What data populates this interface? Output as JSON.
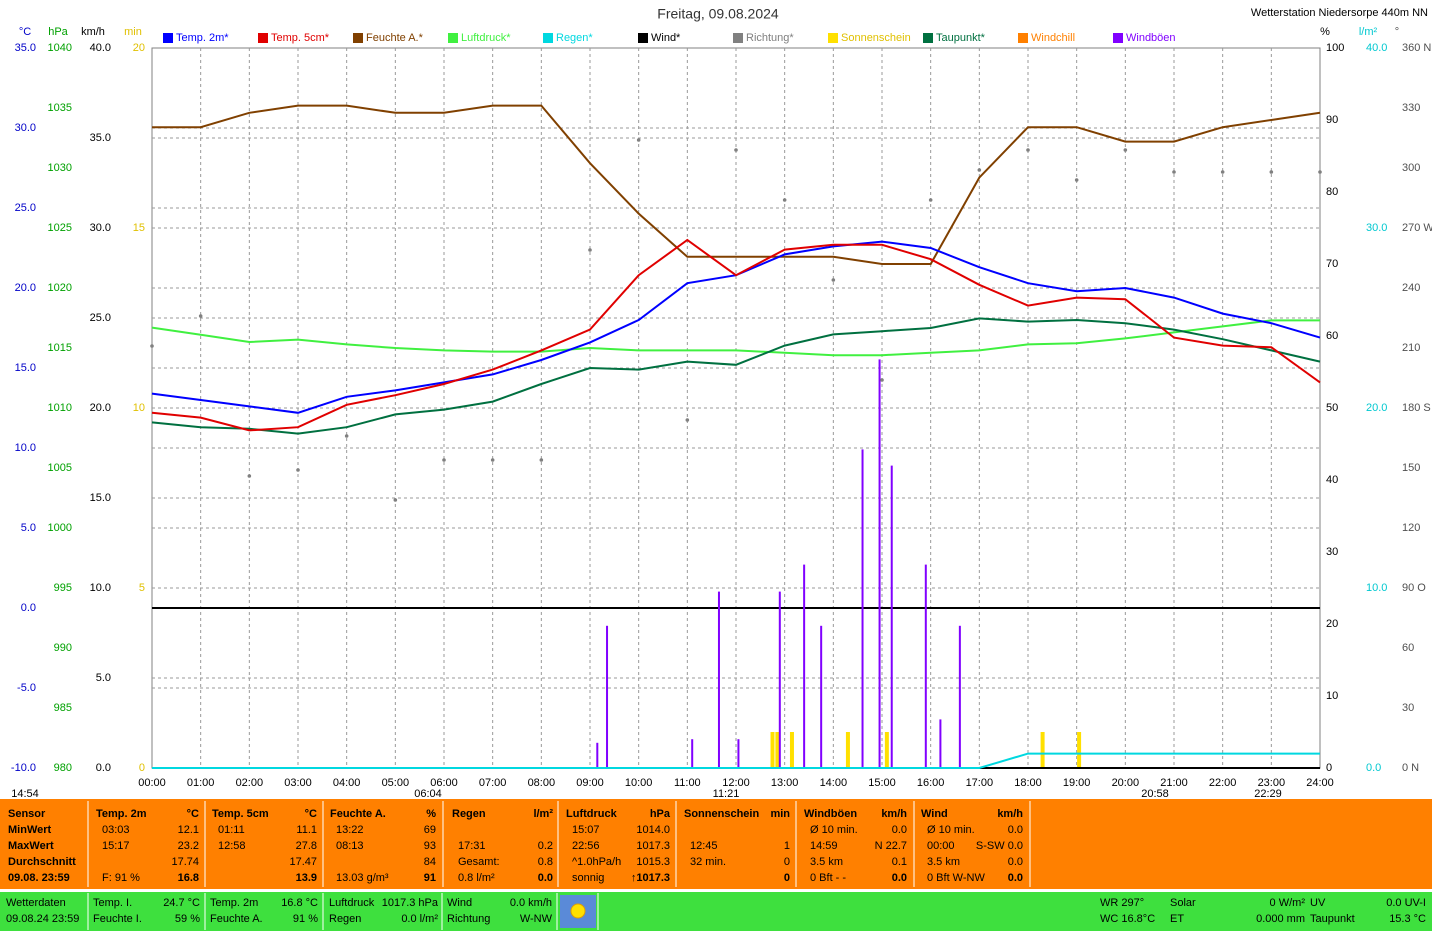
{
  "chart_data": {
    "type": "line",
    "title": "Freitag, 09.08.2024",
    "station": "Wetterstation Niedersorpe 440m NN",
    "xlim": [
      0,
      24
    ],
    "xticks": [
      {
        "value": 0,
        "label": "00:00"
      },
      {
        "value": 1,
        "label": "01:00"
      },
      {
        "value": 2,
        "label": "02:00"
      },
      {
        "value": 3,
        "label": "03:00"
      },
      {
        "value": 4,
        "label": "04:00"
      },
      {
        "value": 5,
        "label": "05:00"
      },
      {
        "value": 6,
        "label": "06:00"
      },
      {
        "value": 7,
        "label": "07:00"
      },
      {
        "value": 8,
        "label": "08:00"
      },
      {
        "value": 9,
        "label": "09:00"
      },
      {
        "value": 10,
        "label": "10:00"
      },
      {
        "value": 11,
        "label": "11:00"
      },
      {
        "value": 12,
        "label": "12:00"
      },
      {
        "value": 13,
        "label": "13:00"
      },
      {
        "value": 14,
        "label": "14:00"
      },
      {
        "value": 15,
        "label": "15:00"
      },
      {
        "value": 16,
        "label": "16:00"
      },
      {
        "value": 17,
        "label": "17:00"
      },
      {
        "value": 18,
        "label": "18:00"
      },
      {
        "value": 19,
        "label": "19:00"
      },
      {
        "value": 20,
        "label": "20:00"
      },
      {
        "value": 21,
        "label": "21:00"
      },
      {
        "value": 22,
        "label": "22:00"
      },
      {
        "value": 23,
        "label": "23:00"
      },
      {
        "value": 24,
        "label": "24:00"
      }
    ],
    "grid_x": true,
    "axes": [
      {
        "label": "°C",
        "color": "#0000c8",
        "lim": [
          -10,
          35
        ],
        "grid": true,
        "zero_line": true,
        "ticks": [
          {
            "value": -10,
            "label": "-10.0"
          },
          {
            "value": -5,
            "label": "-5.0"
          },
          {
            "value": 0,
            "label": "0.0"
          },
          {
            "value": 5,
            "label": "5.0"
          },
          {
            "value": 10,
            "label": "10.0"
          },
          {
            "value": 15,
            "label": "15.0"
          },
          {
            "value": 20,
            "label": "20.0"
          },
          {
            "value": 25,
            "label": "25.0"
          },
          {
            "value": 30,
            "label": "30.0"
          },
          {
            "value": 35,
            "label": "35.0"
          }
        ]
      },
      {
        "label": "hPa",
        "color": "#00a000",
        "lim": [
          980,
          1040
        ],
        "ticks": [
          980,
          985,
          990,
          995,
          1000,
          1005,
          1010,
          1015,
          1020,
          1025,
          1030,
          1035,
          1040
        ]
      },
      {
        "label": "km/h",
        "color": "#000000",
        "lim": [
          0,
          40
        ],
        "grid": true,
        "ticks": [
          {
            "value": 0,
            "label": "0.0"
          },
          {
            "value": 5,
            "label": "5.0"
          },
          {
            "value": 10,
            "label": "10.0"
          },
          {
            "value": 15,
            "label": "15.0"
          },
          {
            "value": 20,
            "label": "20.0"
          },
          {
            "value": 25,
            "label": "25.0"
          },
          {
            "value": 30,
            "label": "30.0"
          },
          {
            "value": 35,
            "label": "35.0"
          },
          {
            "value": 40,
            "label": "40.0"
          }
        ]
      },
      {
        "label": "min",
        "color": "#e0c000",
        "lim": [
          0,
          20
        ],
        "ticks": [
          0,
          5,
          10,
          15,
          20
        ]
      },
      {
        "label": "%",
        "color": "#000000",
        "lim": [
          0,
          100
        ],
        "ticks": [
          0,
          10,
          20,
          30,
          40,
          50,
          60,
          70,
          80,
          90,
          100
        ]
      },
      {
        "label": "l/m²",
        "color": "#00c8d0",
        "lim": [
          0,
          40
        ],
        "ticks": [
          {
            "value": 0,
            "label": "0.0"
          },
          {
            "value": 10,
            "label": "10.0"
          },
          {
            "value": 20,
            "label": "20.0"
          },
          {
            "value": 30,
            "label": "30.0"
          },
          {
            "value": 40,
            "label": "40.0"
          }
        ]
      },
      {
        "label": "°",
        "color": "#505050",
        "lim": [
          0,
          360
        ],
        "ticks": [
          {
            "value": 0,
            "label": "0 N"
          },
          30,
          60,
          {
            "value": 90,
            "label": "90 O"
          },
          120,
          150,
          {
            "value": 180,
            "label": "180 S"
          },
          210,
          240,
          {
            "value": 270,
            "label": "270 W"
          },
          300,
          330,
          {
            "value": 360,
            "label": "360 N"
          }
        ]
      }
    ],
    "x": [
      0,
      1,
      2,
      3,
      4,
      5,
      6,
      7,
      8,
      9,
      10,
      11,
      12,
      13,
      14,
      15,
      16,
      17,
      18,
      19,
      20,
      21,
      22,
      23,
      24
    ],
    "series": [
      {
        "name": "Temp. 2m*",
        "color": "#0000ff",
        "type": "line",
        "axis": 0,
        "values": [
          13.4,
          13.0,
          12.6,
          12.2,
          13.2,
          13.6,
          14.1,
          14.6,
          15.5,
          16.6,
          18.0,
          20.3,
          20.8,
          22.1,
          22.6,
          22.9,
          22.5,
          21.3,
          20.3,
          19.8,
          20.0,
          19.4,
          18.4,
          17.8,
          16.9
        ]
      },
      {
        "name": "Temp. 5cm*",
        "color": "#e00000",
        "type": "line",
        "axis": 0,
        "values": [
          12.2,
          11.9,
          11.1,
          11.3,
          12.7,
          13.3,
          14.0,
          14.9,
          16.1,
          17.4,
          20.8,
          23.0,
          20.8,
          22.4,
          22.7,
          22.7,
          21.8,
          20.2,
          18.9,
          19.4,
          19.3,
          16.9,
          16.4,
          16.3,
          14.1
        ]
      },
      {
        "name": "Feuchte A.*",
        "color": "#804000",
        "type": "line",
        "axis": 4,
        "values": [
          89,
          89,
          91,
          92,
          92,
          91,
          91,
          92,
          92,
          84,
          77,
          71,
          71,
          71,
          71,
          70,
          70,
          82,
          89,
          89,
          87,
          87,
          89,
          90,
          91
        ]
      },
      {
        "name": "Luftdruck*",
        "color": "#40f040",
        "type": "line",
        "axis": 1,
        "values": [
          1016.7,
          1016.1,
          1015.5,
          1015.7,
          1015.3,
          1015.0,
          1014.8,
          1014.7,
          1014.7,
          1015.0,
          1014.8,
          1014.8,
          1014.8,
          1014.6,
          1014.4,
          1014.4,
          1014.6,
          1014.8,
          1015.3,
          1015.4,
          1015.8,
          1016.3,
          1016.8,
          1017.3,
          1017.3
        ]
      },
      {
        "name": "Regen*",
        "color": "#00d8e0",
        "type": "line",
        "axis": 5,
        "values": [
          0,
          0,
          0,
          0,
          0,
          0,
          0,
          0,
          0,
          0,
          0,
          0,
          0,
          0,
          0,
          0,
          0,
          0,
          0.8,
          0.8,
          0.8,
          0.8,
          0.8,
          0.8,
          0.8
        ]
      },
      {
        "name": "Wind*",
        "color": "#000000",
        "type": "line",
        "axis": 2,
        "values": [
          0,
          0,
          0,
          0,
          0,
          0,
          0,
          0,
          0,
          0,
          0,
          0,
          0,
          0,
          0,
          0,
          0,
          0,
          0,
          0,
          0,
          0,
          0,
          0,
          0
        ]
      },
      {
        "name": "Richtung*",
        "color": "#808080",
        "type": "scatter",
        "axis": 6,
        "values": [
          211,
          226,
          146,
          149,
          166,
          134,
          154,
          154,
          154,
          259,
          314,
          174,
          309,
          284,
          244,
          194,
          284,
          299,
          309,
          294,
          309,
          298,
          298,
          298,
          298
        ]
      },
      {
        "name": "Sonnenschein",
        "color": "#ffe000",
        "type": "bar",
        "axis": 3,
        "x": [
          12.75,
          12.85,
          13.15,
          14.3,
          15.1,
          18.3,
          19.05
        ],
        "values": [
          1,
          1,
          1,
          1,
          1,
          1,
          1
        ]
      },
      {
        "name": "Taupunkt*",
        "color": "#007040",
        "type": "line",
        "axis": 0,
        "values": [
          11.6,
          11.3,
          11.2,
          10.9,
          11.3,
          12.1,
          12.4,
          12.9,
          14.0,
          15.0,
          14.9,
          15.4,
          15.2,
          16.4,
          17.1,
          17.3,
          17.5,
          18.1,
          17.9,
          18.0,
          17.8,
          17.4,
          16.8,
          16.1,
          15.4
        ]
      },
      {
        "name": "Windchill",
        "color": "#ff8000",
        "type": "line",
        "axis": 0
      },
      {
        "name": "Windböen",
        "color": "#8000ff",
        "type": "bar",
        "axis": 2,
        "x": [
          9.15,
          9.35,
          11.1,
          11.65,
          12.05,
          12.9,
          13.4,
          13.75,
          14.6,
          14.95,
          15.2,
          15.9,
          16.2,
          16.6
        ],
        "values": [
          1.4,
          7.9,
          1.6,
          9.8,
          1.6,
          9.8,
          11.3,
          7.9,
          17.7,
          22.7,
          16.8,
          11.3,
          2.7,
          7.9
        ]
      }
    ],
    "markers": [
      "14:54",
      "06:04",
      "11:21",
      "20:58",
      "22:29"
    ]
  },
  "summary": {
    "columns": [
      {
        "head": [
          "Sensor"
        ],
        "rows": [
          [
            "MinWert"
          ],
          [
            "MaxWert"
          ],
          [
            "Durchschnitt"
          ],
          [
            "09.08. 23:59"
          ]
        ]
      },
      {
        "head": [
          "Temp. 2m",
          "°C"
        ],
        "rows": [
          [
            "03:03",
            "12.1"
          ],
          [
            "15:17",
            "23.2"
          ],
          [
            null,
            "17.74"
          ],
          [
            "F: 91 %",
            "16.8"
          ]
        ]
      },
      {
        "head": [
          "Temp. 5cm",
          "°C"
        ],
        "rows": [
          [
            "01:11",
            "11.1"
          ],
          [
            "12:58",
            "27.8"
          ],
          [
            null,
            "17.47"
          ],
          [
            null,
            "13.9"
          ]
        ]
      },
      {
        "head": [
          "Feuchte A.",
          "%"
        ],
        "rows": [
          [
            "13:22",
            "69"
          ],
          [
            "08:13",
            "93"
          ],
          [
            null,
            "84"
          ],
          [
            "13.03 g/m³",
            "91"
          ]
        ]
      },
      {
        "head": [
          "Regen",
          "l/m²"
        ],
        "rows": [
          [
            null,
            null
          ],
          [
            "17:31",
            "0.2"
          ],
          [
            "Gesamt:",
            "0.8"
          ],
          [
            "0.8 l/m²",
            "0.0"
          ]
        ]
      },
      {
        "head": [
          "Luftdruck",
          "hPa"
        ],
        "rows": [
          [
            "15:07",
            "1014.0"
          ],
          [
            "22:56",
            "1017.3"
          ],
          [
            "^1.0hPa/h",
            "1015.3"
          ],
          [
            "sonnig",
            "↑1017.3"
          ]
        ]
      },
      {
        "head": [
          "Sonnenschein",
          "min"
        ],
        "rows": [
          [
            null,
            null
          ],
          [
            "12:45",
            "1"
          ],
          [
            "32 min.",
            "0"
          ],
          [
            null,
            "0"
          ]
        ]
      },
      {
        "head": [
          "Windböen",
          "km/h"
        ],
        "rows": [
          [
            "Ø 10 min.",
            "0.0"
          ],
          [
            "14:59",
            "N 22.7"
          ],
          [
            "3.5 km",
            "0.1"
          ],
          [
            "0 Bft - -",
            "0.0"
          ]
        ]
      },
      {
        "head": [
          "Wind",
          "km/h"
        ],
        "rows": [
          [
            "Ø 10 min.",
            "0.0"
          ],
          [
            "00:00",
            "S-SW 0.0"
          ],
          [
            "3.5 km",
            "0.0"
          ],
          [
            "0 Bft W-NW",
            "0.0"
          ]
        ]
      }
    ]
  },
  "footer": {
    "groups": [
      {
        "rows": [
          [
            "Wetterdaten"
          ],
          [
            "09.08.24 23:59"
          ]
        ]
      },
      {
        "rows": [
          [
            "Temp. I.",
            "24.7 °C"
          ],
          [
            "Feuchte I.",
            "59 %"
          ]
        ]
      },
      {
        "rows": [
          [
            "Temp. 2m",
            "16.8 °C"
          ],
          [
            "Feuchte A.",
            "91 %"
          ]
        ]
      },
      {
        "rows": [
          [
            "Luftdruck",
            "1017.3 hPa"
          ],
          [
            "Regen",
            "0.0 l/m²"
          ]
        ]
      },
      {
        "rows": [
          [
            "Wind",
            "0.0 km/h"
          ],
          [
            "Richtung",
            "W-NW"
          ]
        ]
      },
      {
        "rows": [
          [
            "WR 297°"
          ],
          [
            "WC 16.8°C"
          ]
        ]
      },
      {
        "rows": [
          [
            "Solar",
            "0 W/m²"
          ],
          [
            "ET",
            "0.000 mm"
          ]
        ]
      },
      {
        "rows": [
          [
            "UV",
            "0.0 UV-I"
          ],
          [
            "Taupunkt",
            "15.3 °C"
          ]
        ]
      }
    ]
  }
}
